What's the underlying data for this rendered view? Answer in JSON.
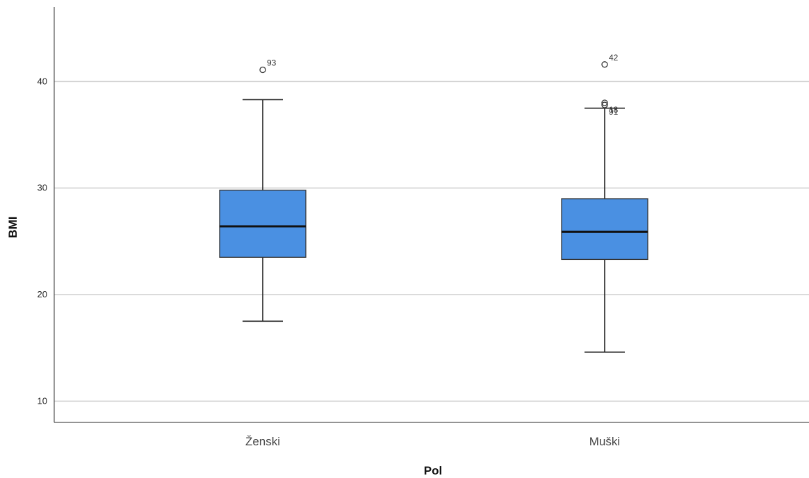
{
  "chart_data": {
    "type": "boxplot",
    "xlabel": "Pol",
    "ylabel": "BMI",
    "ylim": [
      8,
      47
    ],
    "yticks": [
      10,
      20,
      30,
      40
    ],
    "grid": "horizontal",
    "box_color": "#4a90e2",
    "categories": [
      "Ženski",
      "Muški"
    ],
    "boxes": [
      {
        "category": "Ženski",
        "whisker_low": 17.5,
        "q1": 23.5,
        "median": 26.4,
        "q3": 29.8,
        "whisker_high": 38.3,
        "outliers": [
          {
            "value": 41.1,
            "label": "93"
          }
        ]
      },
      {
        "category": "Muški",
        "whisker_low": 14.6,
        "q1": 23.3,
        "median": 25.9,
        "q3": 29.0,
        "whisker_high": 37.5,
        "outliers": [
          {
            "value": 41.6,
            "label": "42"
          },
          {
            "value": 38.0,
            "label": "18"
          },
          {
            "value": 37.8,
            "label": "91"
          }
        ]
      }
    ]
  }
}
